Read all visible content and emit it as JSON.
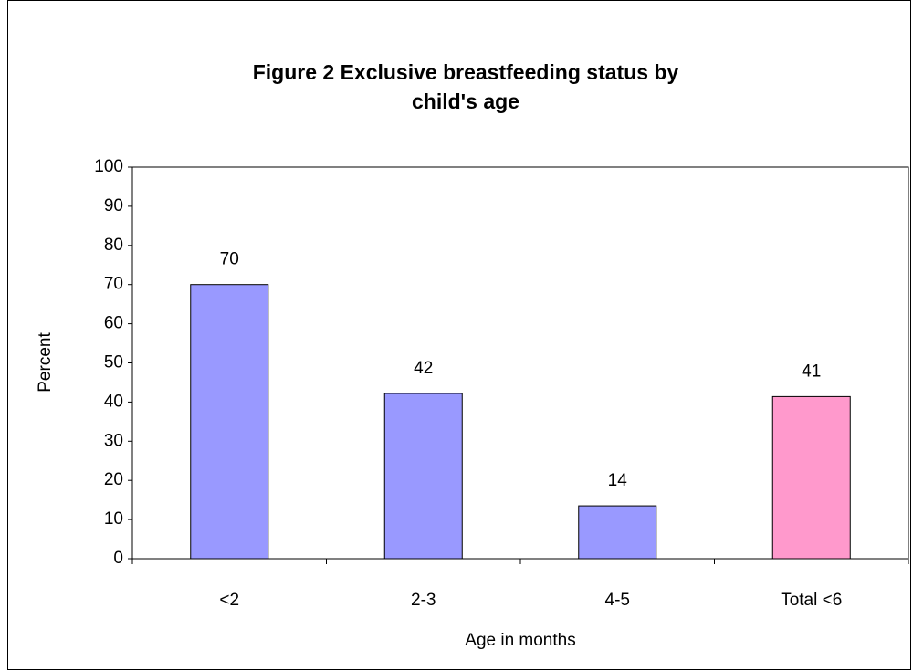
{
  "chart_data": {
    "type": "bar",
    "title": [
      "Figure 2  Exclusive breastfeeding status by",
      "child's age"
    ],
    "x_label": "Age in months",
    "y_label": "Percent",
    "categories": [
      "<2",
      "2-3",
      "4-5",
      "Total <6"
    ],
    "values": [
      70,
      42.2,
      13.5,
      41.4
    ],
    "value_labels": [
      "70",
      "42",
      "14",
      "41"
    ],
    "colors": [
      "#9999ff",
      "#9999ff",
      "#9999ff",
      "#ff99cc"
    ],
    "ylim": [
      0,
      100
    ],
    "yticks": [
      0,
      10,
      20,
      30,
      40,
      50,
      60,
      70,
      80,
      90,
      100
    ],
    "grid": false
  }
}
